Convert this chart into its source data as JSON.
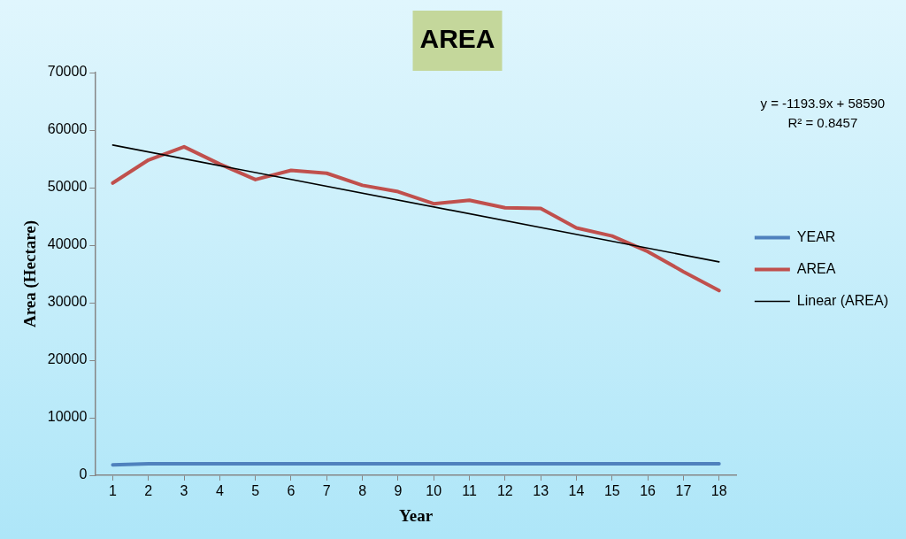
{
  "chart_data": {
    "type": "line",
    "title": "AREA",
    "xlabel": "Year",
    "ylabel": "Area (Hectare)",
    "x": [
      1,
      2,
      3,
      4,
      5,
      6,
      7,
      8,
      9,
      10,
      11,
      12,
      13,
      14,
      15,
      16,
      17,
      18
    ],
    "xlim": [
      0.5,
      18.5
    ],
    "xticks": [
      1,
      2,
      3,
      4,
      5,
      6,
      7,
      8,
      9,
      10,
      11,
      12,
      13,
      14,
      15,
      16,
      17,
      18
    ],
    "ylim": [
      0,
      70000
    ],
    "yticks": [
      0,
      10000,
      20000,
      30000,
      40000,
      50000,
      60000,
      70000
    ],
    "series": [
      {
        "name": "YEAR",
        "color": "#4f81bd",
        "values": [
          1800,
          2000,
          2000,
          2000,
          2000,
          2000,
          2000,
          2000,
          2000,
          2000,
          2000,
          2000,
          2000,
          2000,
          2000,
          2000,
          2000,
          2000
        ]
      },
      {
        "name": "AREA",
        "color": "#c0504d",
        "values": [
          50800,
          54800,
          57100,
          54100,
          51400,
          53000,
          52500,
          50400,
          49300,
          47200,
          47800,
          46500,
          46400,
          43000,
          41600,
          38900,
          35400,
          32100
        ]
      },
      {
        "name": "Linear (AREA)",
        "type": "line",
        "color": "#000000",
        "x": [
          1,
          18
        ],
        "values": [
          57400,
          37100
        ]
      }
    ],
    "annotations": [
      "y = -1193.9x + 58590",
      "R² = 0.8457"
    ],
    "legend": "right",
    "grid": false,
    "marker": "none"
  }
}
